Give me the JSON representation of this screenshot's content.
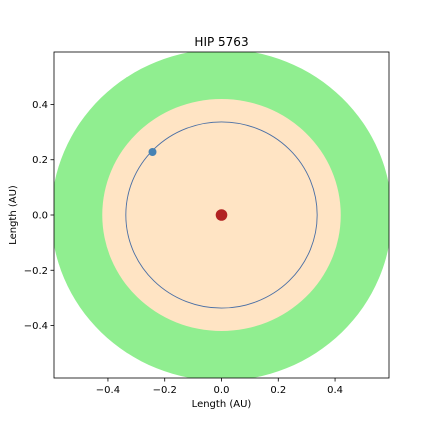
{
  "chart_data": {
    "type": "scatter",
    "title": "HIP 5763",
    "xlabel": "Length (AU)",
    "ylabel": "Length (AU)",
    "xlim": [
      -0.59,
      0.59
    ],
    "ylim": [
      -0.59,
      0.59
    ],
    "grid": false,
    "x_ticks": [
      -0.4,
      -0.2,
      0.0,
      0.2,
      0.4
    ],
    "x_tick_labels": [
      "−0.4",
      "−0.2",
      "0.0",
      "0.2",
      "0.4"
    ],
    "y_ticks": [
      -0.4,
      -0.2,
      0.0,
      0.2,
      0.4
    ],
    "y_tick_labels": [
      "−0.4",
      "−0.2",
      "0.0",
      "0.2",
      "0.4"
    ],
    "zones": [
      {
        "shape": "disk",
        "center": [
          0,
          0
        ],
        "radius": 0.6,
        "color": "#90ee90"
      },
      {
        "shape": "disk",
        "center": [
          0,
          0
        ],
        "radius": 0.42,
        "color": "#ffe4c4"
      }
    ],
    "orbits": [
      {
        "center": [
          0,
          0
        ],
        "radius": 0.337,
        "color": "#4a6fa5"
      }
    ],
    "points": [
      {
        "x": 0.0,
        "y": 0.0,
        "color": "#b22222",
        "size": "large"
      },
      {
        "x": -0.243,
        "y": 0.228,
        "color": "#4682b4",
        "size": "small"
      }
    ]
  }
}
